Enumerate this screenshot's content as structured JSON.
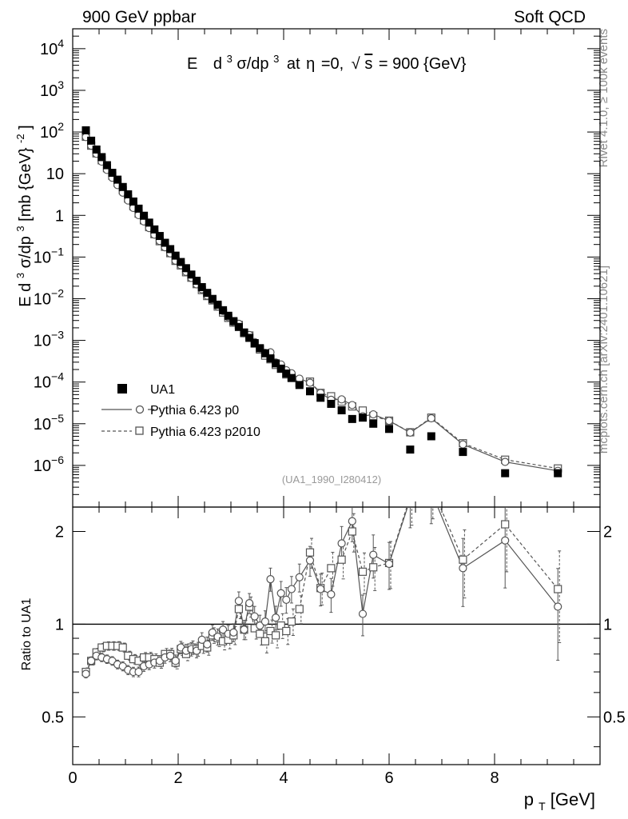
{
  "header": {
    "left": "900 GeV ppbar",
    "right": "Soft QCD"
  },
  "side": {
    "rivet": "Rivet 4.1.0, ≥ 100k events",
    "mcplots": "mcplots.cern.ch [arXiv:2401.10621]"
  },
  "colors": {
    "data": "#000000",
    "mc": "#555555",
    "grid": "#000000"
  },
  "chart_data": {
    "type": "scatter",
    "title": "E d³σ/dp³ at η =0, √s = 900 {GeV}",
    "title_parts": {
      "a": "E",
      "b": "d",
      "c": "3",
      "d": "σ/dp",
      "e": "3",
      "f": "at",
      "g": "η",
      "h": "=0,",
      "i": "√",
      "j": "s",
      "k": "= 900 {GeV}"
    },
    "ylabel": "E d³σ/dp³ [mb {GeV}⁻²]",
    "ylabel_parts": {
      "a": "E d",
      "b": "3",
      "c": "σ/dp",
      "d": "3",
      "e": " [mb {GeV}",
      "f": "-2",
      "g": "]"
    },
    "xlabel": "p_T [GeV]",
    "xlabel_parts": {
      "a": "p",
      "b": "T",
      "c": " [GeV]"
    },
    "ratio_ylabel": "Ratio to UA1",
    "watermark": "(UA1_1990_I280412)",
    "xlim": [
      0,
      10
    ],
    "ylim": [
      1e-07,
      30000.0
    ],
    "ratio_ylim": [
      0.35,
      2.4
    ],
    "x_ticks": [
      "0",
      "2",
      "4",
      "6",
      "8"
    ],
    "y_ticks": [
      {
        "base": "10",
        "exp": "4"
      },
      {
        "base": "10",
        "exp": "3"
      },
      {
        "base": "10",
        "exp": "2"
      },
      {
        "base": "10",
        "exp": ""
      },
      {
        "base": "1",
        "exp": ""
      },
      {
        "base": "10",
        "exp": "−1"
      },
      {
        "base": "10",
        "exp": "−2"
      },
      {
        "base": "10",
        "exp": "−3"
      },
      {
        "base": "10",
        "exp": "−4"
      },
      {
        "base": "10",
        "exp": "−5"
      },
      {
        "base": "10",
        "exp": "−6"
      }
    ],
    "ratio_ticks": [
      "2",
      "1",
      "0.5"
    ],
    "legend": {
      "position": "bottom-left",
      "entries": [
        "UA1",
        "Pythia 6.423 p0",
        "Pythia 6.423 p2010"
      ]
    },
    "x": [
      0.25,
      0.35,
      0.45,
      0.55,
      0.65,
      0.75,
      0.85,
      0.95,
      1.05,
      1.15,
      1.25,
      1.35,
      1.45,
      1.55,
      1.65,
      1.75,
      1.85,
      1.95,
      2.05,
      2.15,
      2.25,
      2.35,
      2.45,
      2.55,
      2.65,
      2.75,
      2.85,
      2.95,
      3.05,
      3.15,
      3.25,
      3.35,
      3.45,
      3.55,
      3.65,
      3.75,
      3.85,
      3.95,
      4.05,
      4.15,
      4.3,
      4.5,
      4.7,
      4.9,
      5.1,
      5.3,
      5.5,
      5.7,
      6.0,
      6.4,
      6.8,
      7.4,
      8.2,
      9.2
    ],
    "series": [
      {
        "name": "UA1",
        "style": "filled-square",
        "values": [
          110,
          62,
          38,
          25,
          16,
          10.5,
          7.2,
          4.8,
          3.2,
          2.15,
          1.45,
          0.98,
          0.67,
          0.46,
          0.32,
          0.22,
          0.155,
          0.108,
          0.076,
          0.054,
          0.038,
          0.027,
          0.019,
          0.0138,
          0.0099,
          0.0072,
          0.0053,
          0.0039,
          0.0029,
          0.0021,
          0.00155,
          0.00115,
          0.00086,
          0.00065,
          0.00049,
          0.00037,
          0.00028,
          0.00021,
          0.00016,
          0.000125,
          8.5e-05,
          6e-05,
          4.2e-05,
          3e-05,
          2.1e-05,
          1.3e-05,
          1.4e-05,
          1e-05,
          7.5e-06,
          2.4e-06,
          5e-06,
          2.1e-06,
          6.5e-07,
          6.5e-07
        ]
      },
      {
        "name": "Pythia 6.423 p0",
        "style": "open-circle-solid",
        "ratio": [
          0.69,
          0.76,
          0.79,
          0.78,
          0.77,
          0.76,
          0.74,
          0.73,
          0.71,
          0.7,
          0.7,
          0.73,
          0.74,
          0.75,
          0.76,
          0.78,
          0.79,
          0.76,
          0.84,
          0.82,
          0.83,
          0.82,
          0.89,
          0.86,
          0.94,
          0.91,
          0.96,
          0.93,
          0.94,
          1.19,
          0.96,
          1.17,
          1.06,
          0.99,
          1.02,
          1.4,
          1.05,
          1.26,
          1.2,
          1.3,
          1.42,
          1.61,
          1.3,
          1.25,
          1.83,
          2.16,
          1.08,
          1.68,
          1.57,
          2.55,
          2.7,
          1.52,
          1.87,
          1.14
        ]
      },
      {
        "name": "Pythia 6.423 p2010",
        "style": "open-square-dashed",
        "ratio": [
          0.7,
          0.76,
          0.81,
          0.84,
          0.85,
          0.85,
          0.85,
          0.84,
          0.79,
          0.77,
          0.76,
          0.78,
          0.78,
          0.77,
          0.75,
          0.8,
          0.8,
          0.75,
          0.83,
          0.8,
          0.84,
          0.83,
          0.85,
          0.84,
          0.92,
          0.9,
          0.88,
          0.89,
          0.92,
          1.12,
          0.96,
          1.14,
          0.97,
          0.93,
          0.88,
          0.95,
          0.92,
          0.99,
          0.95,
          1.02,
          1.12,
          1.71,
          1.31,
          1.52,
          1.62,
          2.0,
          1.48,
          1.53,
          1.58,
          2.6,
          2.8,
          1.62,
          2.11,
          1.3
        ]
      }
    ]
  }
}
